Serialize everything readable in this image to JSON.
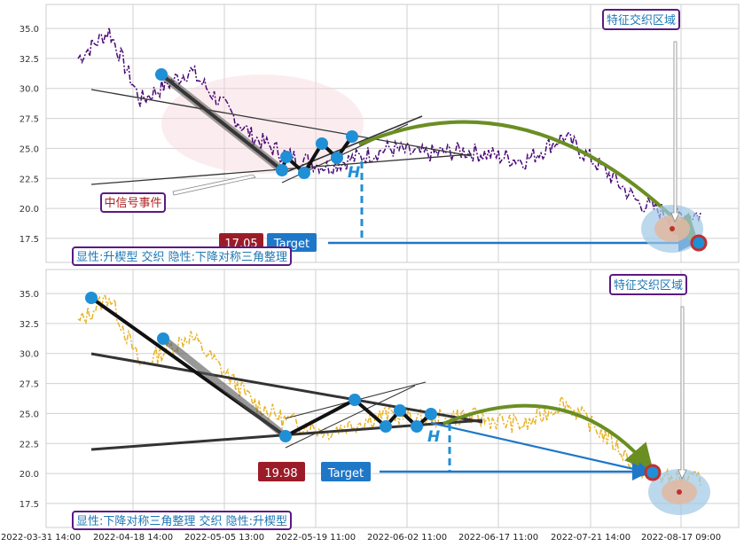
{
  "colors": {
    "panel_bg": "#ffffff",
    "grid": "#d0d0d0",
    "series_top": "#4b0a78",
    "series_bottom": "#e8b42a",
    "pattern_line": "#222222",
    "point": "#1f8fd6",
    "arrow_green": "#6b8e23",
    "target_box": "#1f77c8",
    "price_box": "#9b1c28",
    "label_border": "#5a1a82",
    "label_text": "#1f77b4",
    "event_text": "#b22222"
  },
  "x_tick_labels": [
    "2022-03-31 14:00",
    "2022-04-18 14:00",
    "2022-05-05 13:00",
    "2022-05-19 11:00",
    "2022-06-02 11:00",
    "2022-06-17 11:00",
    "2022-07-21 14:00",
    "2022-08-17 09:00"
  ],
  "chart_data": [
    {
      "type": "line",
      "panel": "top",
      "y_ticks": [
        "17.5",
        "20.0",
        "22.5",
        "25.0",
        "27.5",
        "30.0",
        "32.5",
        "35.0"
      ],
      "ylim": [
        15.5,
        37.0
      ],
      "x_tick_labels": [
        "2022-03-31 14:00",
        "2022-04-18 14:00",
        "2022-05-05 13:00",
        "2022-05-19 11:00",
        "2022-06-02 11:00",
        "2022-06-17 11:00",
        "2022-07-21 14:00",
        "2022-08-17 09:00"
      ],
      "series_anchor_x": [
        0,
        0.05,
        0.1,
        0.18,
        0.28,
        0.33,
        0.4,
        0.5,
        0.55,
        0.62,
        0.72,
        0.78,
        0.85,
        0.9,
        0.95
      ],
      "series_anchor_y": [
        32.5,
        34.8,
        29,
        31.5,
        26,
        24.5,
        23.5,
        25,
        24.5,
        24.8,
        24,
        26,
        23,
        20.5,
        19.5
      ],
      "pattern_points": [
        [
          0.13,
          31.3
        ],
        [
          0.3,
          23.2
        ],
        [
          0.32,
          24.4
        ],
        [
          0.35,
          22.9
        ],
        [
          0.38,
          25.4
        ],
        [
          0.4,
          24.3
        ],
        [
          0.42,
          26.1
        ]
      ],
      "target_value": "17.05",
      "target_label": "Target",
      "h_label": "H",
      "event_label": "中信号事件",
      "zone_label": "特征交织区域",
      "pattern_caption": "显性:升楔型 交织 隐性:下降对称三角整理"
    },
    {
      "type": "line",
      "panel": "bottom",
      "y_ticks": [
        "17.5",
        "20.0",
        "22.5",
        "25.0",
        "27.5",
        "30.0",
        "32.5",
        "35.0"
      ],
      "ylim": [
        15.5,
        37.0
      ],
      "x_tick_labels": [
        "2022-03-31 14:00",
        "2022-04-18 14:00",
        "2022-05-05 13:00",
        "2022-05-19 11:00",
        "2022-06-02 11:00",
        "2022-06-17 11:00",
        "2022-07-21 14:00",
        "2022-08-17 09:00"
      ],
      "series_anchor_x": [
        0,
        0.05,
        0.1,
        0.18,
        0.28,
        0.33,
        0.4,
        0.5,
        0.55,
        0.62,
        0.72,
        0.78,
        0.85,
        0.9,
        0.95
      ],
      "series_anchor_y": [
        32.5,
        34.8,
        29,
        31.5,
        26,
        24.5,
        23.5,
        25,
        24.5,
        24.8,
        24,
        26,
        23,
        20.5,
        19.5
      ],
      "pattern_points": [
        [
          0.02,
          34.8
        ],
        [
          0.13,
          31.3
        ],
        [
          0.3,
          23.2
        ],
        [
          0.42,
          26.1
        ],
        [
          0.46,
          23.8
        ],
        [
          0.48,
          25.2
        ],
        [
          0.5,
          23.8
        ],
        [
          0.52,
          24.9
        ]
      ],
      "target_value": "19.98",
      "target_label": "Target",
      "h_label": "H",
      "zone_label": "特征交织区域",
      "pattern_caption": "显性:下降对称三角整理 交织 隐性:升楔型"
    }
  ]
}
